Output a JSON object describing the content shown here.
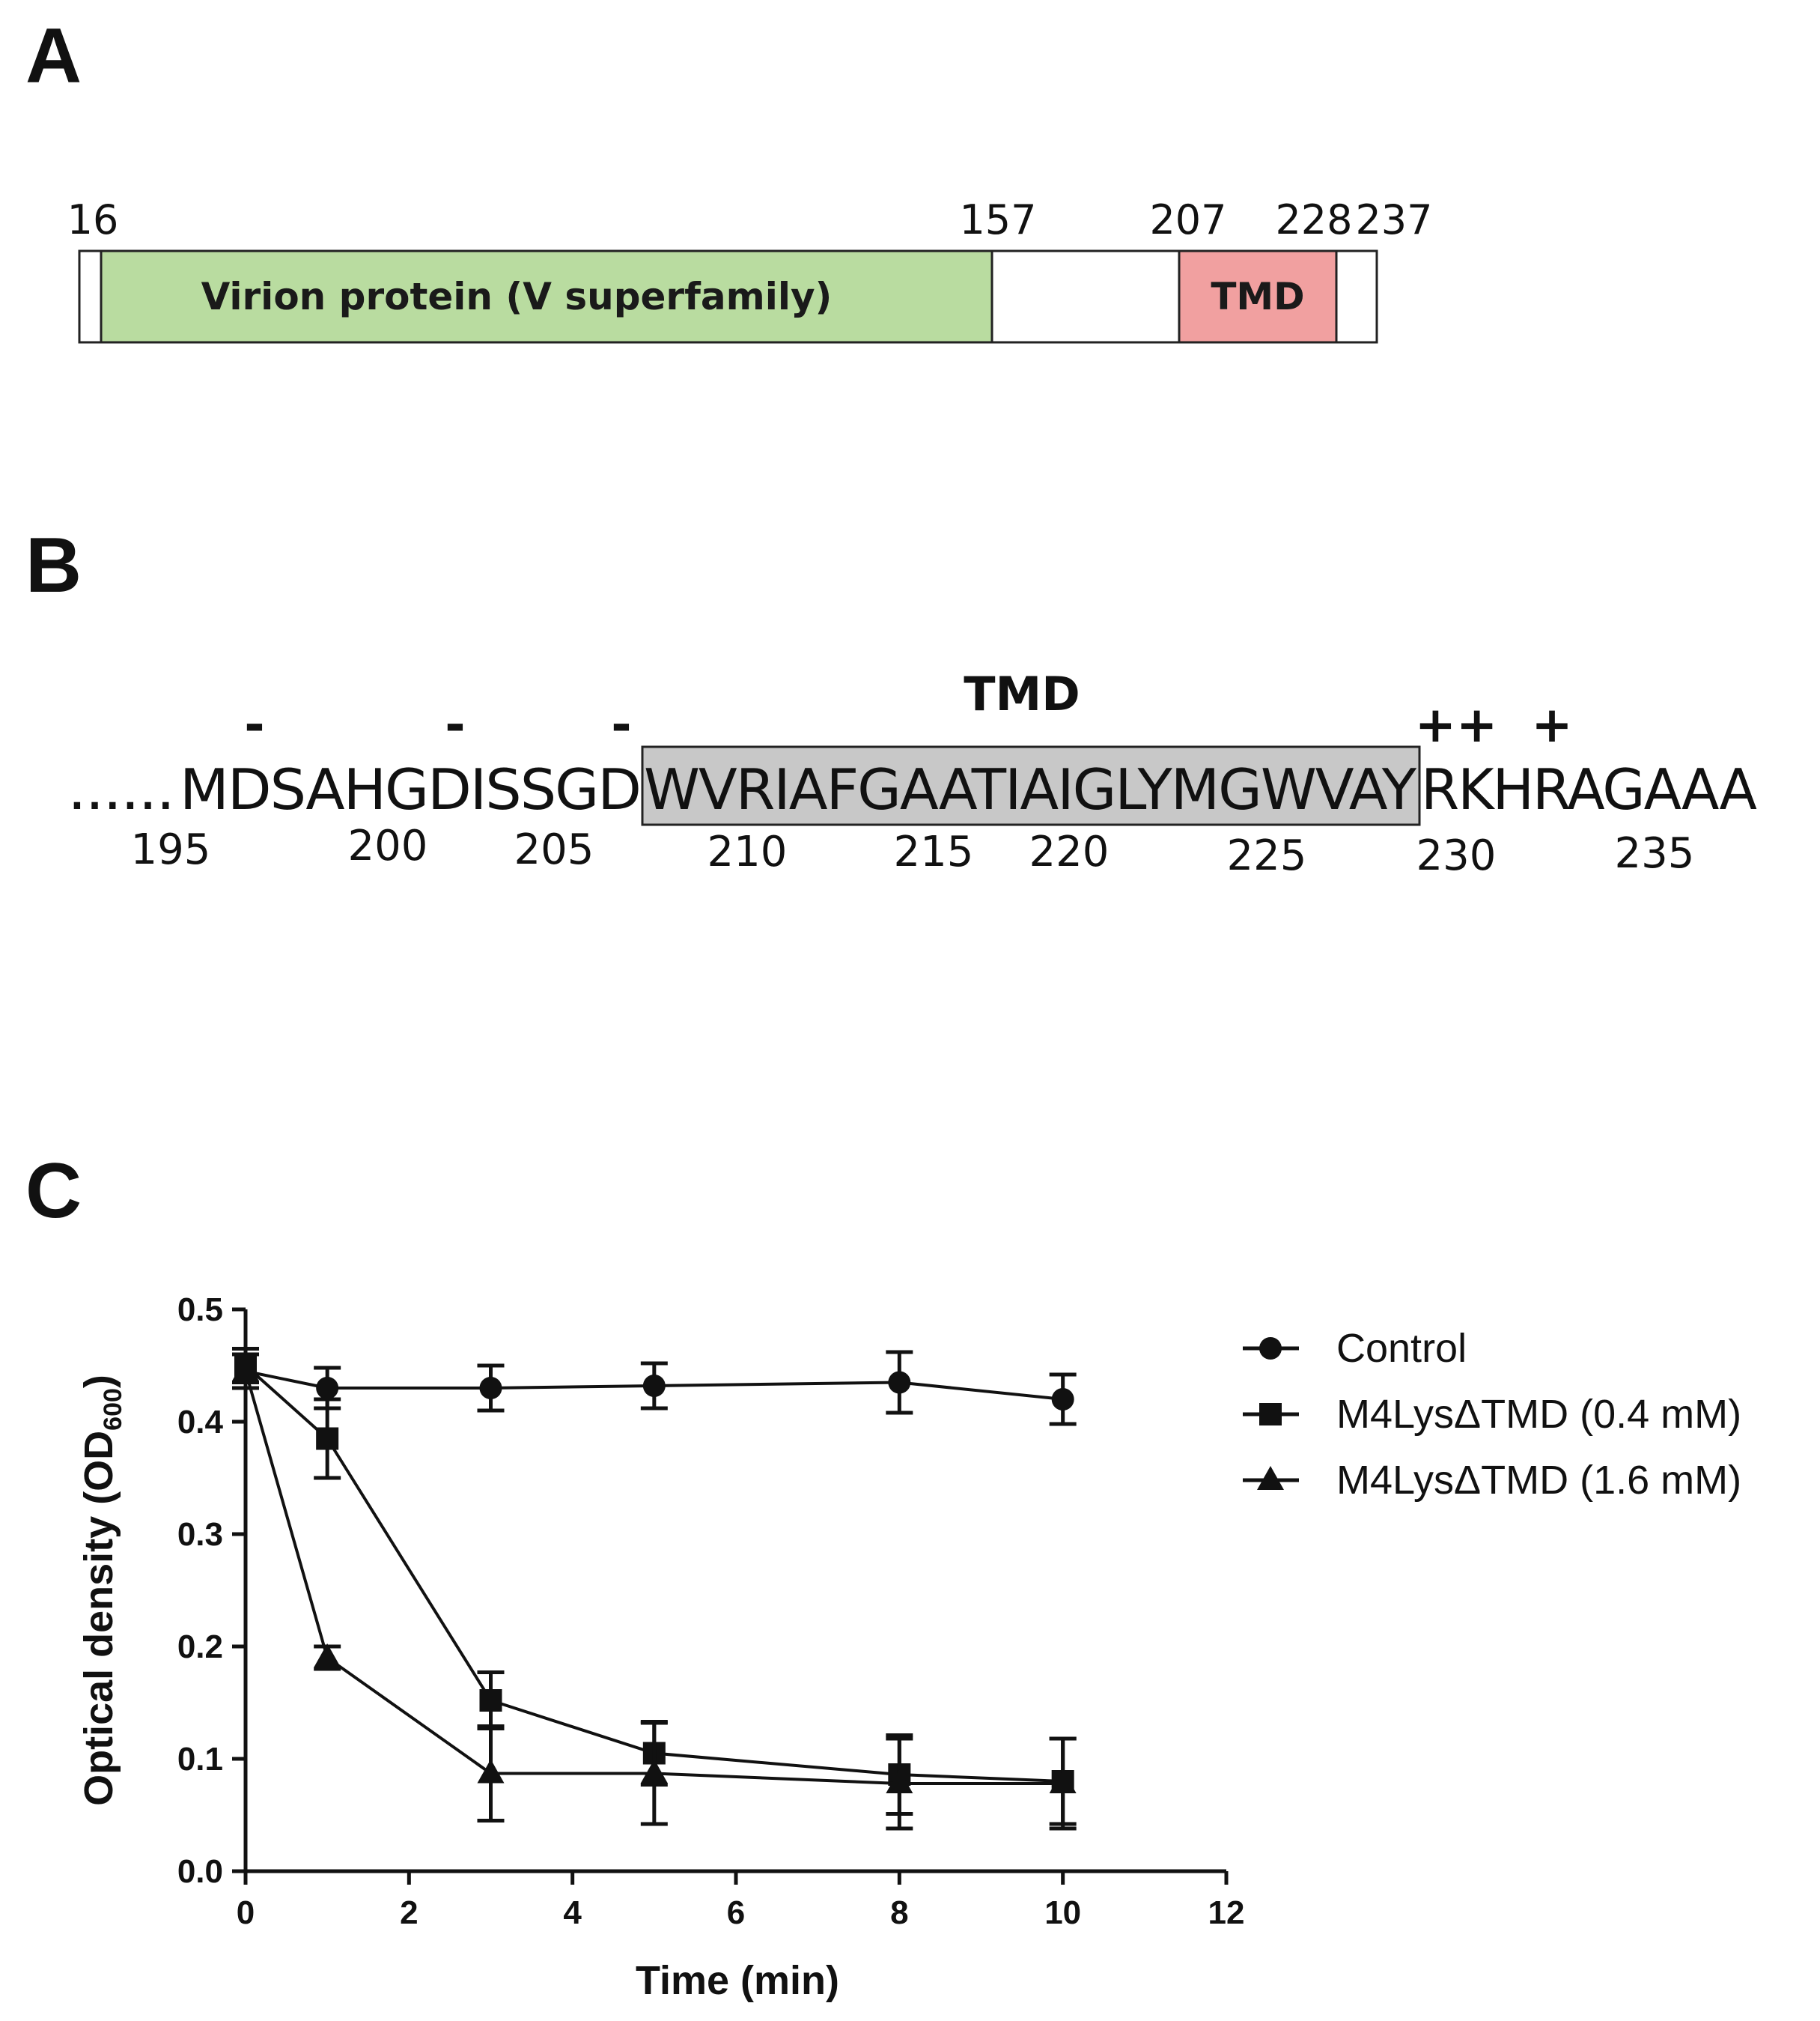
{
  "panels": {
    "a": {
      "label": "A"
    },
    "b": {
      "label": "B"
    },
    "c": {
      "label": "C"
    }
  },
  "domain_map": {
    "positions": [
      "16",
      "157",
      "207",
      "228",
      "237"
    ],
    "virion_label": "Virion protein (V superfamily)",
    "tmd_label": "TMD",
    "colors": {
      "virion": "#b9dca0",
      "tmd": "#f1a0a0",
      "outline": "#222222"
    }
  },
  "sequence": {
    "tmd_title": "TMD",
    "ellipsis": "......",
    "before": "MDSAHGDISSGD",
    "tmd": "WVRIAFGAATIAIGLYMGWVAY",
    "after": "RKHRAGAAA",
    "charges": [
      "-",
      "-",
      "-",
      "++",
      "+"
    ],
    "positions": [
      "195",
      "200",
      "205",
      "210",
      "215",
      "220",
      "225",
      "230",
      "235"
    ],
    "tmd_fill": "#c8c8c8"
  },
  "chart_data": {
    "type": "line",
    "title": "",
    "xlabel": "Time (min)",
    "ylabel_main": "Optical density (OD",
    "ylabel_sub": "600",
    "ylabel_close": ")",
    "xlim": [
      0,
      12
    ],
    "ylim": [
      0,
      0.5
    ],
    "xticks": [
      "0",
      "2",
      "4",
      "6",
      "8",
      "10",
      "12"
    ],
    "yticks": [
      "0.0",
      "0.1",
      "0.2",
      "0.3",
      "0.4",
      "0.5"
    ],
    "x": [
      0,
      1,
      3,
      5,
      8,
      10
    ],
    "legend_position": "top-right",
    "series": [
      {
        "name": "Control",
        "marker": "circle",
        "values": [
          0.445,
          0.43,
          0.43,
          0.432,
          0.435,
          0.42
        ],
        "errors": [
          0.015,
          0.018,
          0.02,
          0.02,
          0.027,
          0.022
        ]
      },
      {
        "name": "M4LysΔTMD (0.4 mM)",
        "marker": "square",
        "values": [
          0.45,
          0.385,
          0.152,
          0.105,
          0.086,
          0.08
        ],
        "errors": [
          0.015,
          0.035,
          0.025,
          0.028,
          0.035,
          0.038
        ]
      },
      {
        "name": "M4LysΔTMD (1.6 mM)",
        "marker": "triangle",
        "values": [
          0.445,
          0.19,
          0.087,
          0.087,
          0.078,
          0.078
        ],
        "errors": [
          0.015,
          0.01,
          0.042,
          0.045,
          0.04,
          0.04
        ]
      }
    ]
  }
}
